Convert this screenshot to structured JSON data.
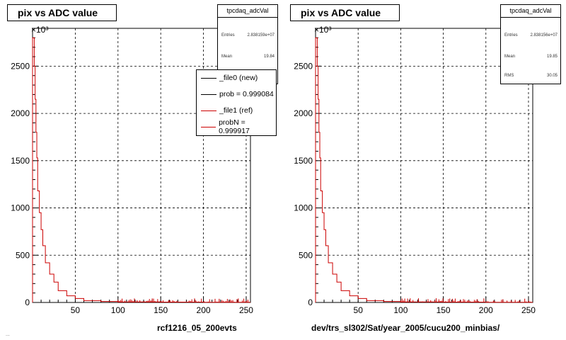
{
  "panels": [
    {
      "title": "pix vs ADC value",
      "stats": {
        "name": "tpcdaq_adcVal",
        "rows": [
          {
            "label": "Entries",
            "value": "2.838159e+07"
          },
          {
            "label": "Mean",
            "value": "19.84"
          }
        ]
      },
      "xlabel": "rcf1216_05_200evts",
      "legend": [
        {
          "label": "_file0 (new)",
          "color": "#000000"
        },
        {
          "label": "prob = 0.999084",
          "color": "#000000"
        },
        {
          "label": "_file1 (ref)",
          "color": "#cc0000"
        },
        {
          "label": "probN = 0.999917",
          "color": "#cc0000"
        }
      ]
    },
    {
      "title": "pix vs ADC value",
      "stats": {
        "name": "tpcdaq_adcVal",
        "rows": [
          {
            "label": "Entries",
            "value": "2.838156e+07"
          },
          {
            "label": "Mean",
            "value": "19.85"
          },
          {
            "label": "RMS",
            "value": "30.05"
          }
        ]
      },
      "xlabel": "dev/trs_sl302/Sat/year_2005/cucu200_minbias/"
    }
  ],
  "footer": "...",
  "chart_data": [
    {
      "type": "line",
      "title": "pix vs ADC value",
      "xlabel": "rcf1216_05_200evts",
      "ylabel": "",
      "y_exponent_label": "×10³",
      "xlim": [
        0,
        255
      ],
      "ylim": [
        0,
        2900
      ],
      "xticks": [
        50,
        100,
        150,
        200,
        250
      ],
      "yticks": [
        500,
        1000,
        1500,
        2000,
        2500
      ],
      "grid": true,
      "series_color": "#cc0000",
      "x": [
        1,
        2,
        3,
        4,
        5,
        6,
        8,
        10,
        12,
        15,
        20,
        25,
        30,
        40,
        50,
        60,
        80,
        100,
        150,
        200,
        255
      ],
      "y": [
        2800,
        2800,
        2500,
        2150,
        1800,
        1530,
        1180,
        950,
        770,
        600,
        420,
        300,
        215,
        125,
        70,
        42,
        20,
        10,
        6,
        4,
        2
      ]
    },
    {
      "type": "line",
      "title": "pix vs ADC value",
      "xlabel": "dev/trs_sl302/Sat/year_2005/cucu200_minbias/",
      "ylabel": "",
      "y_exponent_label": "×10³",
      "xlim": [
        0,
        255
      ],
      "ylim": [
        0,
        2900
      ],
      "xticks": [
        50,
        100,
        150,
        200,
        250
      ],
      "yticks": [
        500,
        1000,
        1500,
        2000,
        2500
      ],
      "grid": true,
      "series_color": "#cc0000",
      "x": [
        1,
        2,
        3,
        4,
        5,
        6,
        8,
        10,
        12,
        15,
        20,
        25,
        30,
        40,
        50,
        60,
        80,
        100,
        150,
        200,
        255
      ],
      "y": [
        2800,
        2800,
        2500,
        2150,
        1800,
        1530,
        1180,
        950,
        770,
        600,
        420,
        300,
        215,
        125,
        70,
        42,
        20,
        10,
        6,
        4,
        2
      ]
    }
  ]
}
